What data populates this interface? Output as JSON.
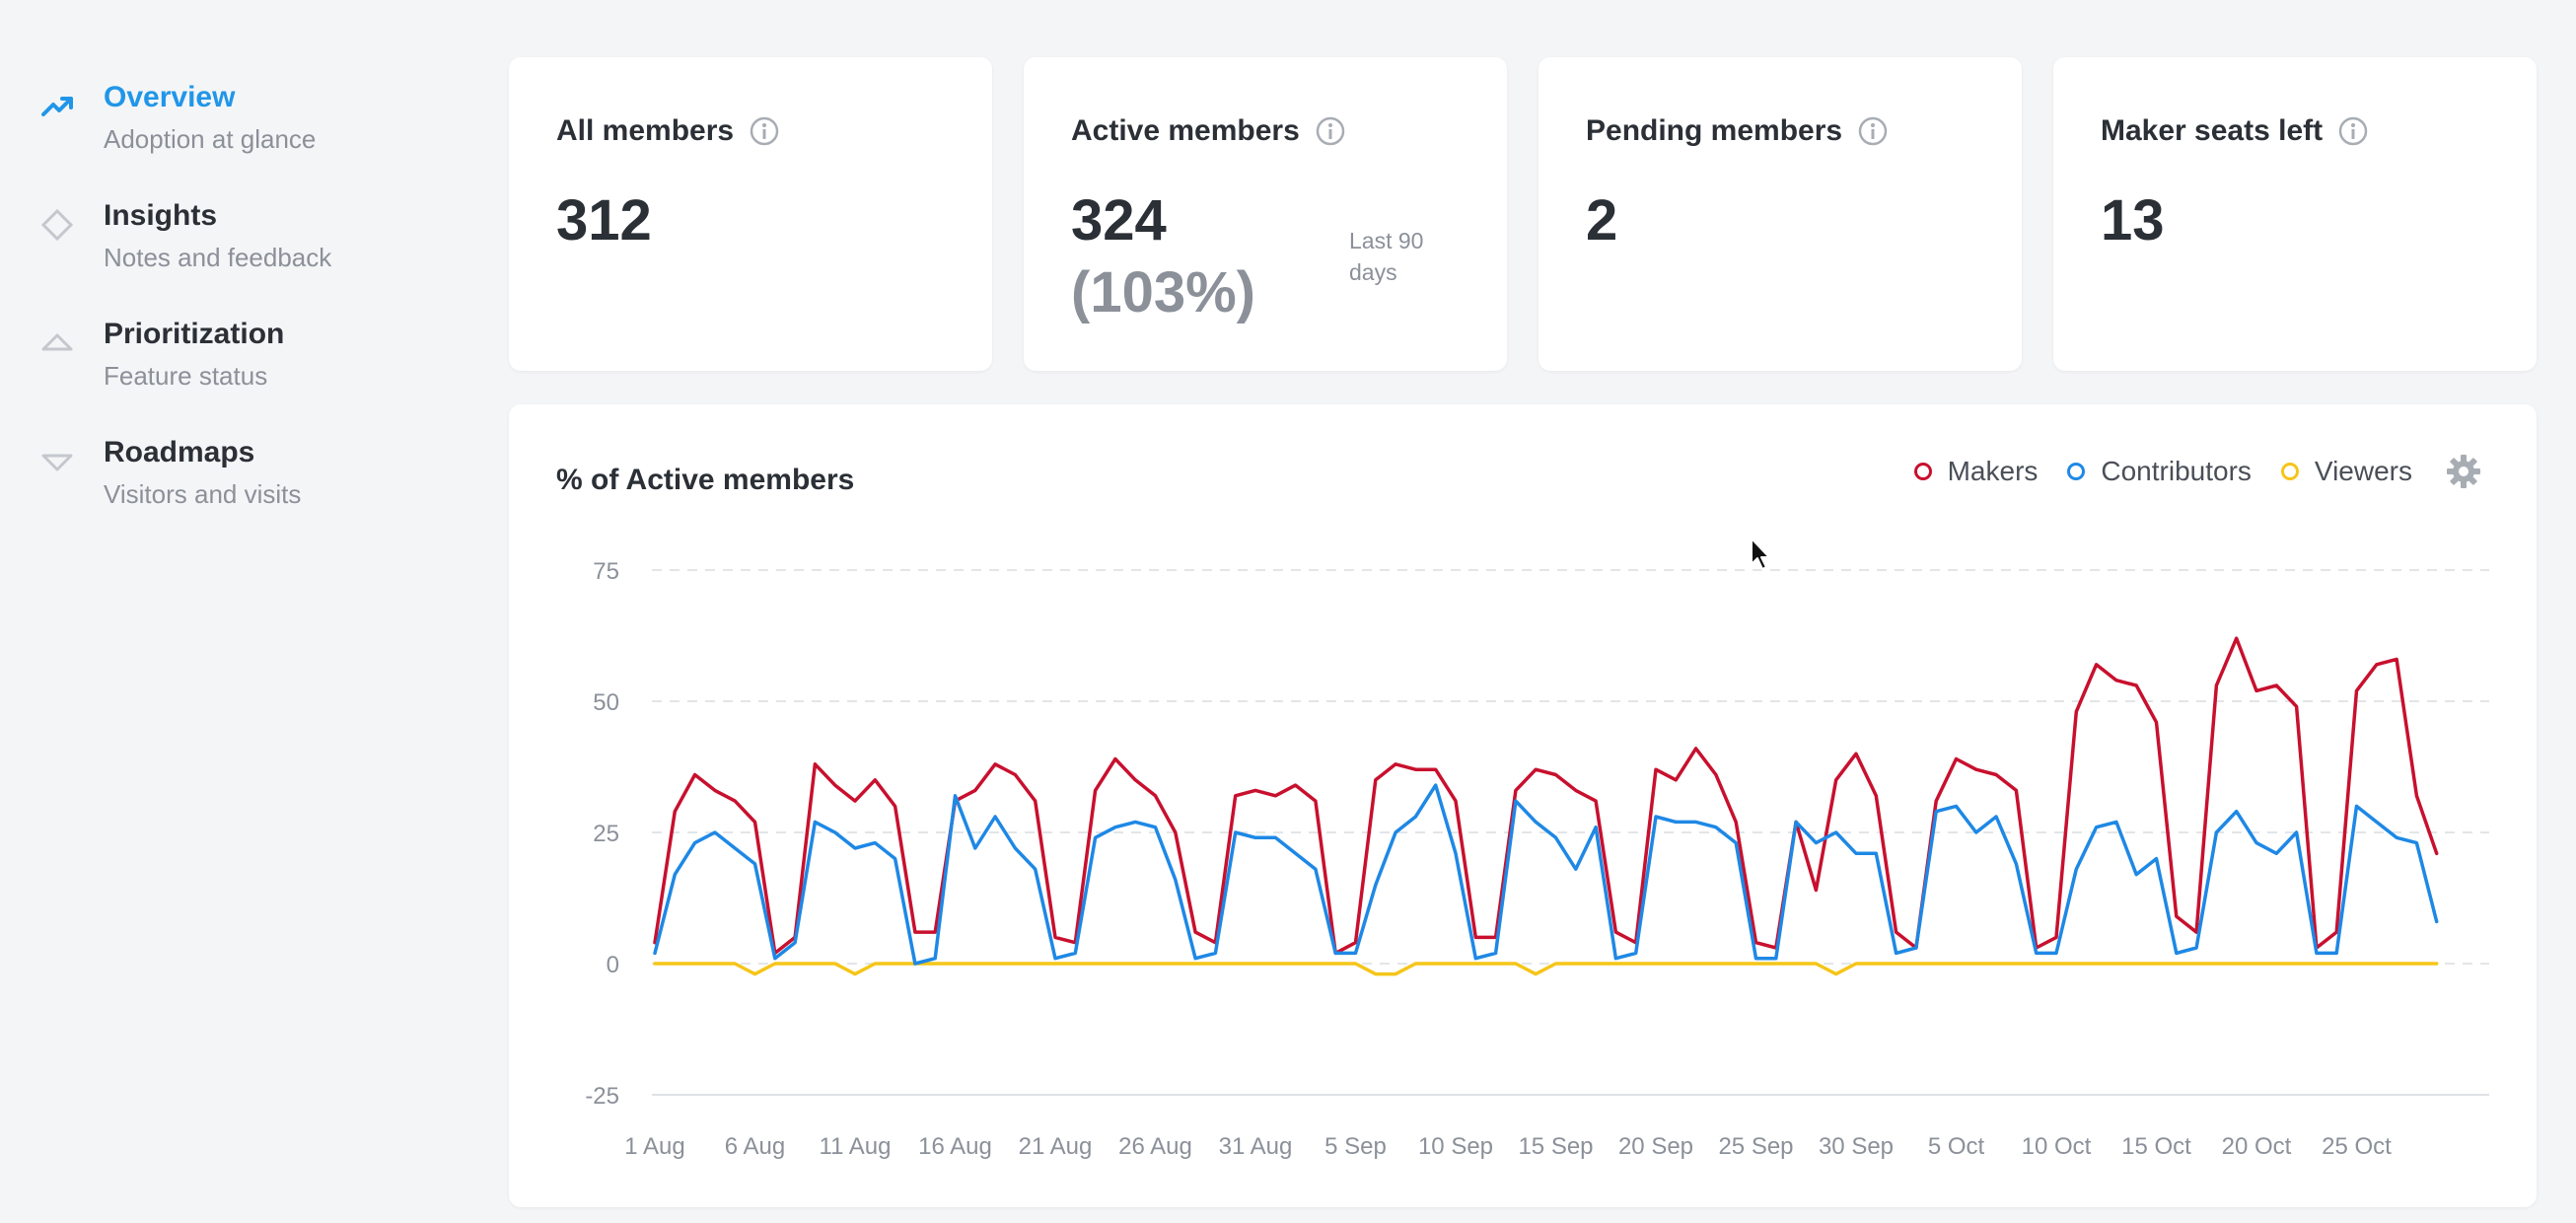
{
  "sidebar": {
    "items": [
      {
        "title": "Overview",
        "subtitle": "Adoption at glance",
        "icon": "trending-up-icon",
        "active": true
      },
      {
        "title": "Insights",
        "subtitle": "Notes and feedback",
        "icon": "diamond-icon",
        "active": false
      },
      {
        "title": "Prioritization",
        "subtitle": "Feature status",
        "icon": "triangle-up-icon",
        "active": false
      },
      {
        "title": "Roadmaps",
        "subtitle": "Visitors and visits",
        "icon": "triangle-down-icon",
        "active": false
      }
    ]
  },
  "stats": [
    {
      "title": "All members",
      "value": "312"
    },
    {
      "title": "Active members",
      "value": "324",
      "percent": "(103%)",
      "note": "Last 90 days"
    },
    {
      "title": "Pending members",
      "value": "2"
    },
    {
      "title": "Maker seats left",
      "value": "13"
    }
  ],
  "colors": {
    "accent": "#2196e8",
    "makers": "#c8102e",
    "contributors": "#1e88e5",
    "viewers": "#f5c518"
  },
  "chart_data": {
    "type": "line",
    "title": "% of Active members",
    "xlabel": "",
    "ylabel": "",
    "ylim": [
      -25,
      75
    ],
    "yticks": [
      75,
      50,
      25,
      0,
      -25
    ],
    "xticks": [
      "1 Aug",
      "6 Aug",
      "11 Aug",
      "16 Aug",
      "21 Aug",
      "26 Aug",
      "31 Aug",
      "5 Sep",
      "10 Sep",
      "15 Sep",
      "20 Sep",
      "25 Sep",
      "30 Sep",
      "5 Oct",
      "10 Oct",
      "15 Oct",
      "20 Oct",
      "25 Oct"
    ],
    "x_start": "1 Aug",
    "x_step_days": 1,
    "grid": "horizontal-dashed",
    "legend": "top-right",
    "series": [
      {
        "name": "Makers",
        "values": [
          4,
          29,
          36,
          33,
          31,
          27,
          2,
          5,
          38,
          34,
          31,
          35,
          30,
          6,
          6,
          31,
          33,
          38,
          36,
          31,
          5,
          4,
          33,
          39,
          35,
          32,
          25,
          6,
          4,
          32,
          33,
          32,
          34,
          31,
          2,
          4,
          35,
          38,
          37,
          37,
          31,
          5,
          5,
          33,
          37,
          36,
          33,
          31,
          6,
          4,
          37,
          35,
          41,
          36,
          27,
          4,
          3,
          27,
          14,
          35,
          40,
          32,
          6,
          3,
          31,
          39,
          37,
          36,
          33,
          3,
          5,
          48,
          57,
          54,
          53,
          46,
          9,
          6,
          53,
          62,
          52,
          53,
          49,
          3,
          6,
          52,
          57,
          58,
          32,
          21
        ]
      },
      {
        "name": "Contributors",
        "values": [
          2,
          17,
          23,
          25,
          22,
          19,
          1,
          4,
          27,
          25,
          22,
          23,
          20,
          0,
          1,
          32,
          22,
          28,
          22,
          18,
          1,
          2,
          24,
          26,
          27,
          26,
          16,
          1,
          2,
          25,
          24,
          24,
          21,
          18,
          2,
          2,
          15,
          25,
          28,
          34,
          21,
          1,
          2,
          31,
          27,
          24,
          18,
          26,
          1,
          2,
          28,
          27,
          27,
          26,
          23,
          1,
          1,
          27,
          23,
          25,
          21,
          21,
          2,
          3,
          29,
          30,
          25,
          28,
          19,
          2,
          2,
          18,
          26,
          27,
          17,
          20,
          2,
          3,
          25,
          29,
          23,
          21,
          25,
          2,
          2,
          30,
          27,
          24,
          23,
          8
        ]
      },
      {
        "name": "Viewers",
        "values": [
          0,
          0,
          0,
          0,
          0,
          -2,
          0,
          0,
          0,
          0,
          -2,
          0,
          0,
          0,
          0,
          0,
          0,
          0,
          0,
          0,
          0,
          0,
          0,
          0,
          0,
          0,
          0,
          0,
          0,
          0,
          0,
          0,
          0,
          0,
          0,
          0,
          -2,
          -2,
          0,
          0,
          0,
          0,
          0,
          0,
          -2,
          0,
          0,
          0,
          0,
          0,
          0,
          0,
          0,
          0,
          0,
          0,
          0,
          0,
          0,
          -2,
          0,
          0,
          0,
          0,
          0,
          0,
          0,
          0,
          0,
          0,
          0,
          0,
          0,
          0,
          0,
          0,
          0,
          0,
          0,
          0,
          0,
          0,
          0,
          0,
          0,
          0,
          0,
          0,
          0,
          0
        ]
      }
    ]
  }
}
